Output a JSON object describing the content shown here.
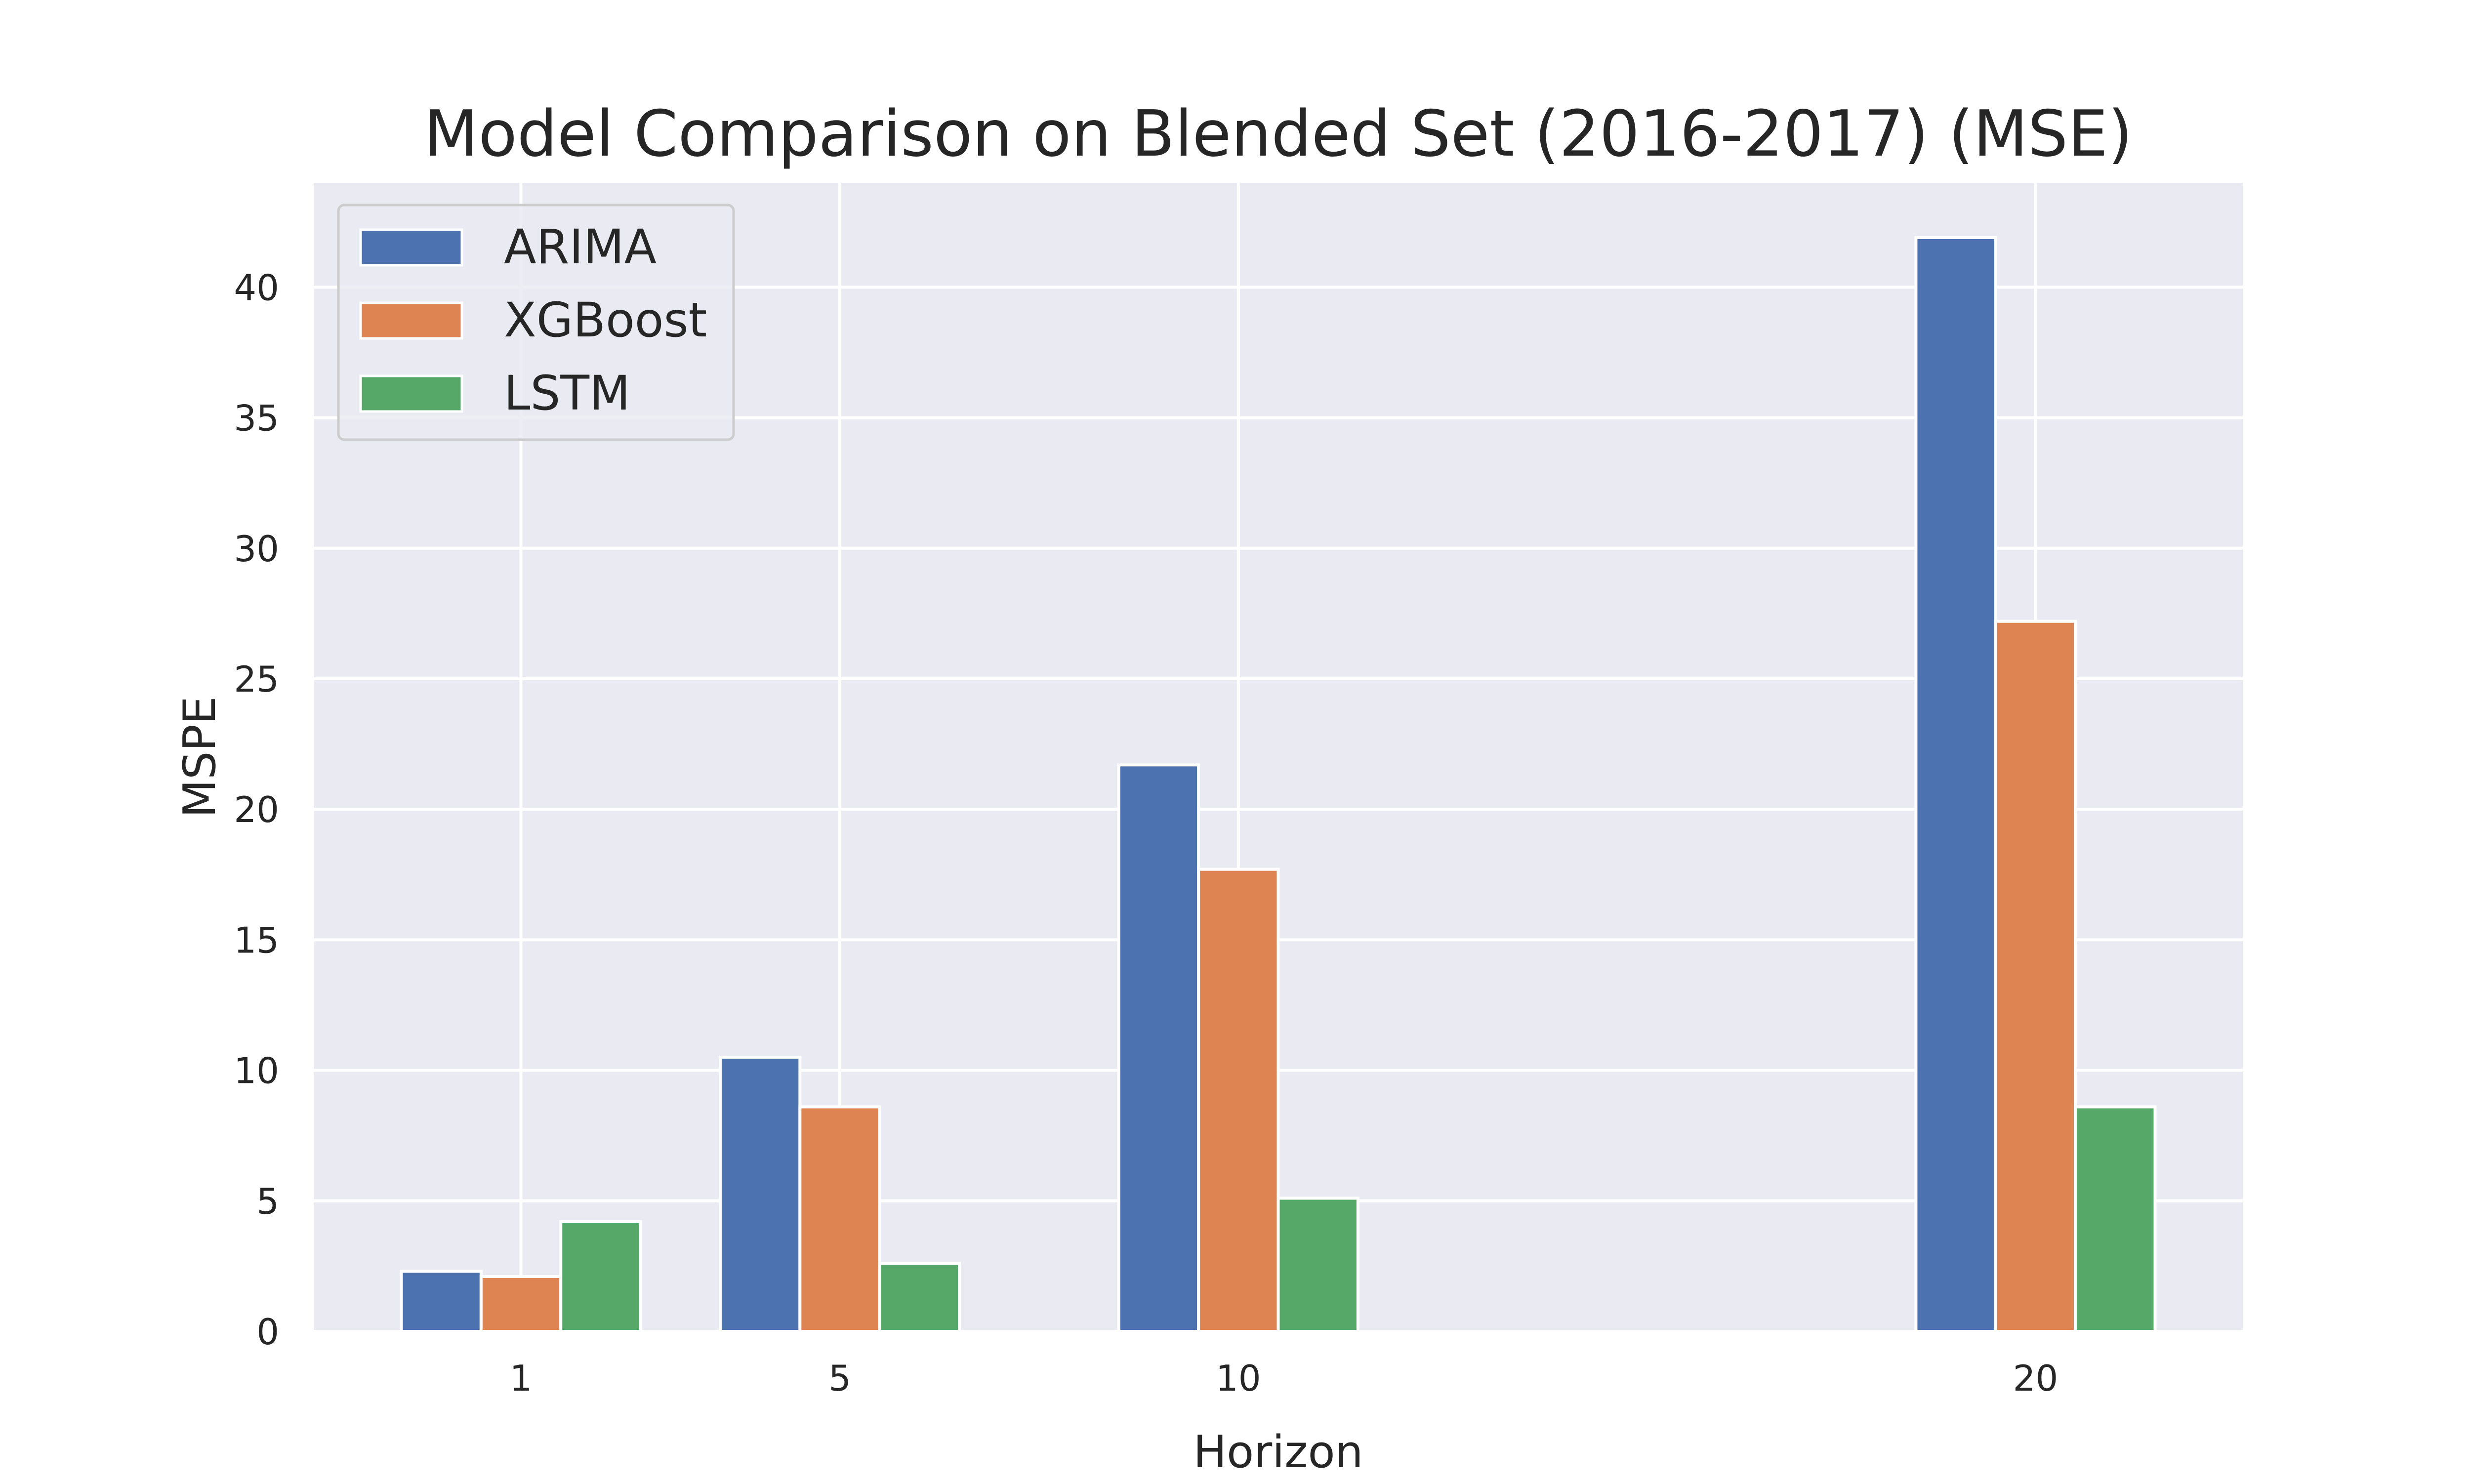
{
  "chart_data": {
    "type": "bar",
    "title": "Model Comparison on Blended Set (2016-2017) (MSE)",
    "xlabel": "Horizon",
    "ylabel": "MSPE",
    "x_ticks": [
      1,
      5,
      10,
      20
    ],
    "x_tick_labels": [
      "1",
      "5",
      "10",
      "20"
    ],
    "xlim": [
      -1.6,
      22.6
    ],
    "ylim": [
      0,
      44
    ],
    "y_ticks": [
      0,
      5,
      10,
      15,
      20,
      25,
      30,
      35,
      40
    ],
    "y_tick_labels": [
      "0",
      "5",
      "10",
      "15",
      "20",
      "25",
      "30",
      "35",
      "40"
    ],
    "bar_width": 1,
    "grid": true,
    "legend_position": "upper-left",
    "background_color": "#eaeaf2",
    "series": [
      {
        "name": "ARIMA",
        "color": "#4c72b0",
        "x": [
          1,
          5,
          10,
          20
        ],
        "values": [
          2.3,
          10.5,
          21.7,
          41.9
        ]
      },
      {
        "name": "XGBoost",
        "color": "#dd8452",
        "x": [
          1,
          5,
          10,
          20
        ],
        "values": [
          2.1,
          8.6,
          17.7,
          27.2
        ]
      },
      {
        "name": "LSTM",
        "color": "#55a868",
        "x": [
          1,
          5,
          10,
          20
        ],
        "values": [
          4.2,
          2.6,
          5.1,
          8.6
        ]
      }
    ]
  }
}
